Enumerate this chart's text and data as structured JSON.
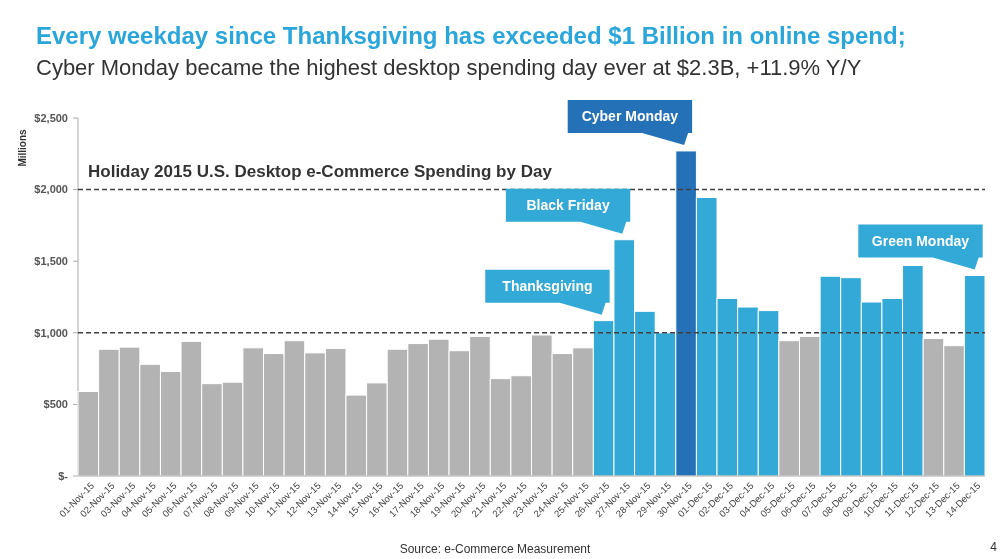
{
  "chart_data": {
    "type": "bar",
    "title": "Every weekday since Thanksgiving has exceeded $1 Billion in online spend;",
    "subtitle": "Cyber Monday became the highest desktop spending day ever at $2.3B, +11.9% Y/Y",
    "ylabel": "Millions",
    "categories": [
      "01-Nov-15",
      "02-Nov-15",
      "03-Nov-15",
      "04-Nov-15",
      "05-Nov-15",
      "06-Nov-15",
      "07-Nov-15",
      "08-Nov-15",
      "09-Nov-15",
      "10-Nov-15",
      "11-Nov-15",
      "12-Nov-15",
      "13-Nov-15",
      "14-Nov-15",
      "15-Nov-15",
      "16-Nov-15",
      "17-Nov-15",
      "18-Nov-15",
      "19-Nov-15",
      "20-Nov-15",
      "21-Nov-15",
      "22-Nov-15",
      "23-Nov-15",
      "24-Nov-15",
      "25-Nov-15",
      "26-Nov-15",
      "27-Nov-15",
      "28-Nov-15",
      "29-Nov-15",
      "30-Nov-15",
      "01-Dec-15",
      "02-Dec-15",
      "03-Dec-15",
      "04-Dec-15",
      "05-Dec-15",
      "06-Dec-15",
      "07-Dec-15",
      "08-Dec-15",
      "09-Dec-15",
      "10-Dec-15",
      "11-Dec-15",
      "12-Dec-15",
      "13-Dec-15",
      "14-Dec-15"
    ],
    "values": [
      590,
      885,
      900,
      780,
      730,
      940,
      645,
      655,
      895,
      855,
      945,
      860,
      890,
      565,
      650,
      885,
      925,
      955,
      875,
      975,
      680,
      700,
      985,
      855,
      895,
      1085,
      1650,
      1150,
      1000,
      2270,
      1945,
      1240,
      1180,
      1155,
      945,
      975,
      1395,
      1385,
      1215,
      1240,
      1470,
      960,
      910,
      1400
    ],
    "colors": [
      "#b3b3b3",
      "#b3b3b3",
      "#b3b3b3",
      "#b3b3b3",
      "#b3b3b3",
      "#b3b3b3",
      "#b3b3b3",
      "#b3b3b3",
      "#b3b3b3",
      "#b3b3b3",
      "#b3b3b3",
      "#b3b3b3",
      "#b3b3b3",
      "#b3b3b3",
      "#b3b3b3",
      "#b3b3b3",
      "#b3b3b3",
      "#b3b3b3",
      "#b3b3b3",
      "#b3b3b3",
      "#b3b3b3",
      "#b3b3b3",
      "#b3b3b3",
      "#b3b3b3",
      "#b3b3b3",
      "#33a9d8",
      "#33a9d8",
      "#33a9d8",
      "#33a9d8",
      "#2571b8",
      "#33a9d8",
      "#33a9d8",
      "#33a9d8",
      "#33a9d8",
      "#b3b3b3",
      "#b3b3b3",
      "#33a9d8",
      "#33a9d8",
      "#33a9d8",
      "#33a9d8",
      "#33a9d8",
      "#b3b3b3",
      "#b3b3b3",
      "#33a9d8"
    ],
    "ylim": [
      0,
      2500
    ],
    "yticks": [
      {
        "value": 0,
        "label": "$-"
      },
      {
        "value": 500,
        "label": "$500"
      },
      {
        "value": 1000,
        "label": "$1,000"
      },
      {
        "value": 1500,
        "label": "$1,500"
      },
      {
        "value": 2000,
        "label": "$2,000"
      },
      {
        "value": 2500,
        "label": "$2,500"
      }
    ],
    "ref_lines": [
      {
        "axis": "y",
        "value": 1000,
        "color": "#404040",
        "line_style": "dashed"
      },
      {
        "axis": "y",
        "value": 2000,
        "color": "#404040",
        "line_style": "dashed"
      }
    ],
    "annotations": [
      "Holiday 2015 U.S. Desktop e-Commerce Spending by Day",
      {
        "text": "Thanksgiving",
        "x": "26-Nov-15",
        "y": 1085
      },
      {
        "text": "Black Friday",
        "x": "27-Nov-15",
        "y": 1650
      },
      {
        "text": "Cyber Monday",
        "x": "30-Nov-15",
        "y": 2270
      },
      {
        "text": "Green Monday",
        "x": "14-Dec-15",
        "y": 1400
      },
      "Source: e-Commerce Measurement",
      "4"
    ]
  }
}
